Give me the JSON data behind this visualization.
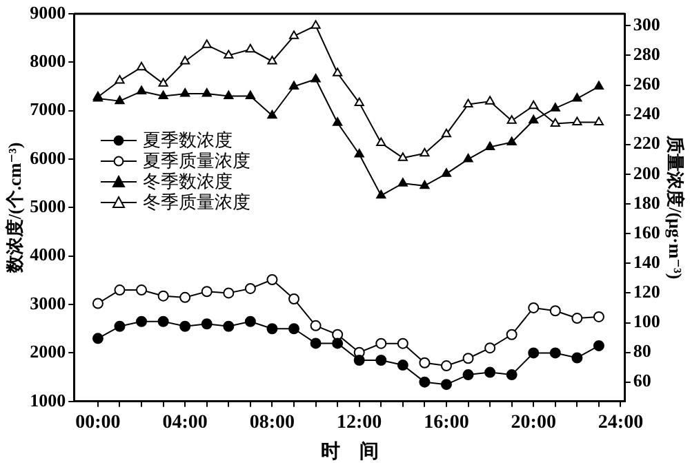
{
  "chart_data": {
    "type": "line",
    "xlabel": "时　间",
    "ylabel": "数浓度/(个.cm⁻³)",
    "y2label": "质量浓度/(μg·m⁻³)",
    "x": [
      0,
      1,
      2,
      3,
      4,
      5,
      6,
      7,
      8,
      9,
      10,
      11,
      12,
      13,
      14,
      15,
      16,
      17,
      18,
      19,
      20,
      21,
      22,
      23
    ],
    "series": [
      {
        "name": "夏季数浓度",
        "color": "#000000",
        "marker": "circle",
        "axis": "y",
        "values": [
          2300,
          2550,
          2650,
          2650,
          2550,
          2600,
          2550,
          2650,
          2500,
          2500,
          2200,
          2200,
          1850,
          1850,
          1750,
          1400,
          1350,
          1550,
          1600,
          1550,
          2000,
          2000,
          1900,
          2150
        ]
      },
      {
        "name": "夏季质量浓度",
        "color": "#000000",
        "marker": "circle",
        "axis": "y2",
        "values": [
          113,
          122,
          122,
          118,
          117,
          121,
          120,
          123,
          129,
          116,
          98,
          92,
          80,
          86,
          86,
          73,
          71,
          76,
          83,
          92,
          110,
          108,
          103,
          104
        ]
      },
      {
        "name": "冬季数浓度",
        "color": "#000000",
        "marker": "triangle",
        "axis": "y",
        "values": [
          7250,
          7200,
          7400,
          7300,
          7350,
          7350,
          7300,
          7300,
          6900,
          7500,
          7650,
          6750,
          6100,
          5250,
          5500,
          5450,
          5700,
          6000,
          6250,
          6350,
          6800,
          7050,
          7250,
          7500
        ]
      },
      {
        "name": "冬季质量浓度",
        "color": "#000000",
        "marker": "triangle",
        "axis": "y2",
        "values": [
          252,
          263,
          272,
          261,
          276,
          287,
          280,
          284,
          276,
          293,
          300,
          268,
          248,
          221,
          211,
          214,
          227,
          247,
          249,
          236,
          246,
          234,
          235,
          235
        ]
      }
    ],
    "xlim": [
      -1.1,
      24.2
    ],
    "xticks": [
      {
        "value": 0,
        "label": "00:00"
      },
      {
        "value": 1,
        "label": null
      },
      {
        "value": 2,
        "label": null
      },
      {
        "value": 3,
        "label": null
      },
      {
        "value": 4,
        "label": "04:00"
      },
      {
        "value": 5,
        "label": null
      },
      {
        "value": 6,
        "label": null
      },
      {
        "value": 7,
        "label": null
      },
      {
        "value": 8,
        "label": "08:00"
      },
      {
        "value": 9,
        "label": null
      },
      {
        "value": 10,
        "label": null
      },
      {
        "value": 11,
        "label": null
      },
      {
        "value": 12,
        "label": "12:00"
      },
      {
        "value": 13,
        "label": null
      },
      {
        "value": 14,
        "label": null
      },
      {
        "value": 15,
        "label": null
      },
      {
        "value": 16,
        "label": "16:00"
      },
      {
        "value": 17,
        "label": null
      },
      {
        "value": 18,
        "label": null
      },
      {
        "value": 19,
        "label": null
      },
      {
        "value": 20,
        "label": "20:00"
      },
      {
        "value": 21,
        "label": null
      },
      {
        "value": 22,
        "label": null
      },
      {
        "value": 23,
        "label": null
      },
      {
        "value": 24,
        "label": "24:00"
      }
    ],
    "ylim": [
      1000,
      9000
    ],
    "yticks": [
      1000,
      2000,
      3000,
      4000,
      5000,
      6000,
      7000,
      8000,
      9000
    ],
    "y2lim": [
      47,
      308
    ],
    "y2ticks": [
      60,
      80,
      100,
      120,
      140,
      160,
      180,
      200,
      220,
      240,
      260,
      280,
      300
    ],
    "grid": false,
    "legend": "top left"
  }
}
